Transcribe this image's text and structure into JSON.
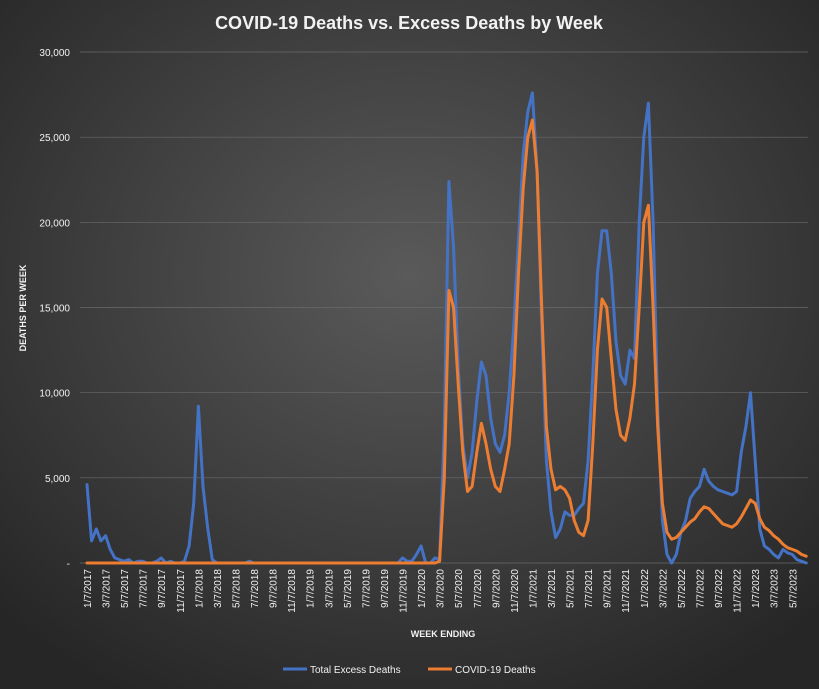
{
  "chart_data": {
    "type": "line",
    "title": "COVID-19  Deaths  vs.  Excess  Deaths  by  Week",
    "y_label": "DEATHS PER WEEK",
    "x_label": "WEEK ENDING",
    "legend": "bottom",
    "grid": true,
    "ylim": [
      0,
      30000
    ],
    "yticks": [
      {
        "value": 0,
        "label": "-"
      },
      {
        "value": 5000,
        "label": "5,000"
      },
      {
        "value": 10000,
        "label": "10,000"
      },
      {
        "value": 15000,
        "label": "15,000"
      },
      {
        "value": 20000,
        "label": "20,000"
      },
      {
        "value": 25000,
        "label": "25,000"
      },
      {
        "value": 30000,
        "label": "30,000"
      }
    ],
    "categories": [
      "1/7/2017",
      null,
      null,
      null,
      "3/7/2017",
      null,
      null,
      null,
      "5/7/2017",
      null,
      null,
      null,
      "7/7/2017",
      null,
      null,
      null,
      "9/7/2017",
      null,
      null,
      null,
      "11/7/2017",
      null,
      null,
      null,
      "1/7/2018",
      null,
      null,
      null,
      "3/7/2018",
      null,
      null,
      null,
      "5/7/2018",
      null,
      null,
      null,
      "7/7/2018",
      null,
      null,
      null,
      "9/7/2018",
      null,
      null,
      null,
      "11/7/2018",
      null,
      null,
      null,
      "1/7/2019",
      null,
      null,
      null,
      "3/7/2019",
      null,
      null,
      null,
      "5/7/2019",
      null,
      null,
      null,
      "7/7/2019",
      null,
      null,
      null,
      "9/7/2019",
      null,
      null,
      null,
      "11/7/2019",
      null,
      null,
      null,
      "1/7/2020",
      null,
      null,
      null,
      "3/7/2020",
      null,
      null,
      null,
      "5/7/2020",
      null,
      null,
      null,
      "7/7/2020",
      null,
      null,
      null,
      "9/7/2020",
      null,
      null,
      null,
      "11/7/2020",
      null,
      null,
      null,
      "1/7/2021",
      null,
      null,
      null,
      "3/7/2021",
      null,
      null,
      null,
      "5/7/2021",
      null,
      null,
      null,
      "7/7/2021",
      null,
      null,
      null,
      "9/7/2021",
      null,
      null,
      null,
      "11/7/2021",
      null,
      null,
      null,
      "1/7/2022",
      null,
      null,
      null,
      "3/7/2022",
      null,
      null,
      null,
      "5/7/2022",
      null,
      null,
      null,
      "7/7/2022",
      null,
      null,
      null,
      "9/7/2022",
      null,
      null,
      null,
      "11/7/2022",
      null,
      null,
      null,
      "1/7/2023",
      null,
      null,
      null,
      "3/7/2023",
      null,
      null,
      null,
      "5/7/2023",
      null,
      null,
      null
    ],
    "series": [
      {
        "name": "Total Excess Deaths",
        "color": "#4472c4",
        "values": [
          4600,
          1300,
          2000,
          1300,
          1600,
          800,
          300,
          200,
          100,
          200,
          0,
          100,
          100,
          0,
          0,
          100,
          300,
          0,
          100,
          0,
          0,
          100,
          1000,
          3500,
          9200,
          4500,
          2100,
          200,
          0,
          0,
          0,
          0,
          0,
          0,
          0,
          100,
          0,
          0,
          0,
          0,
          0,
          0,
          0,
          0,
          0,
          0,
          0,
          0,
          0,
          0,
          0,
          0,
          0,
          0,
          0,
          0,
          0,
          0,
          0,
          0,
          0,
          0,
          0,
          0,
          0,
          0,
          0,
          0,
          300,
          100,
          100,
          500,
          1000,
          0,
          0,
          300,
          200,
          8000,
          22400,
          18500,
          11500,
          7000,
          5000,
          6500,
          9500,
          11800,
          11000,
          8500,
          7000,
          6500,
          7500,
          10000,
          14000,
          19000,
          24000,
          26500,
          27600,
          23000,
          14000,
          6000,
          3000,
          1500,
          2000,
          3000,
          2800,
          2800,
          3200,
          3500,
          6000,
          11000,
          17000,
          19500,
          19500,
          17000,
          13000,
          11000,
          10500,
          12500,
          12000,
          20000,
          25000,
          27000,
          20000,
          9000,
          2500,
          500,
          0,
          500,
          1800,
          2500,
          3800,
          4200,
          4500,
          5500,
          4800,
          4500,
          4300,
          4200,
          4100,
          4000,
          4200,
          6500,
          8000,
          10000,
          6000,
          2000,
          1000,
          800,
          500,
          300,
          800,
          600,
          500,
          200,
          100,
          0
        ]
      },
      {
        "name": "COVID-19 Deaths",
        "color": "#ed7d31",
        "values": [
          0,
          0,
          0,
          0,
          0,
          0,
          0,
          0,
          0,
          0,
          0,
          0,
          0,
          0,
          0,
          0,
          0,
          0,
          0,
          0,
          0,
          0,
          0,
          0,
          0,
          0,
          0,
          0,
          0,
          0,
          0,
          0,
          0,
          0,
          0,
          0,
          0,
          0,
          0,
          0,
          0,
          0,
          0,
          0,
          0,
          0,
          0,
          0,
          0,
          0,
          0,
          0,
          0,
          0,
          0,
          0,
          0,
          0,
          0,
          0,
          0,
          0,
          0,
          0,
          0,
          0,
          0,
          0,
          0,
          0,
          0,
          0,
          0,
          0,
          0,
          0,
          100,
          5000,
          16000,
          15000,
          10500,
          6500,
          4200,
          4500,
          6500,
          8200,
          7000,
          5500,
          4500,
          4200,
          5500,
          7000,
          11000,
          17000,
          22000,
          25000,
          26000,
          23000,
          15000,
          8000,
          5500,
          4300,
          4500,
          4300,
          3800,
          2500,
          1800,
          1600,
          2500,
          7000,
          12500,
          15500,
          15000,
          12000,
          9000,
          7500,
          7200,
          8500,
          10500,
          15000,
          20000,
          21000,
          15000,
          8000,
          3500,
          1800,
          1400,
          1500,
          1800,
          2100,
          2400,
          2600,
          3000,
          3300,
          3200,
          2900,
          2600,
          2300,
          2200,
          2100,
          2300,
          2700,
          3200,
          3700,
          3500,
          2600,
          2100,
          1900,
          1600,
          1400,
          1100,
          900,
          800,
          700,
          500,
          400
        ]
      }
    ]
  }
}
